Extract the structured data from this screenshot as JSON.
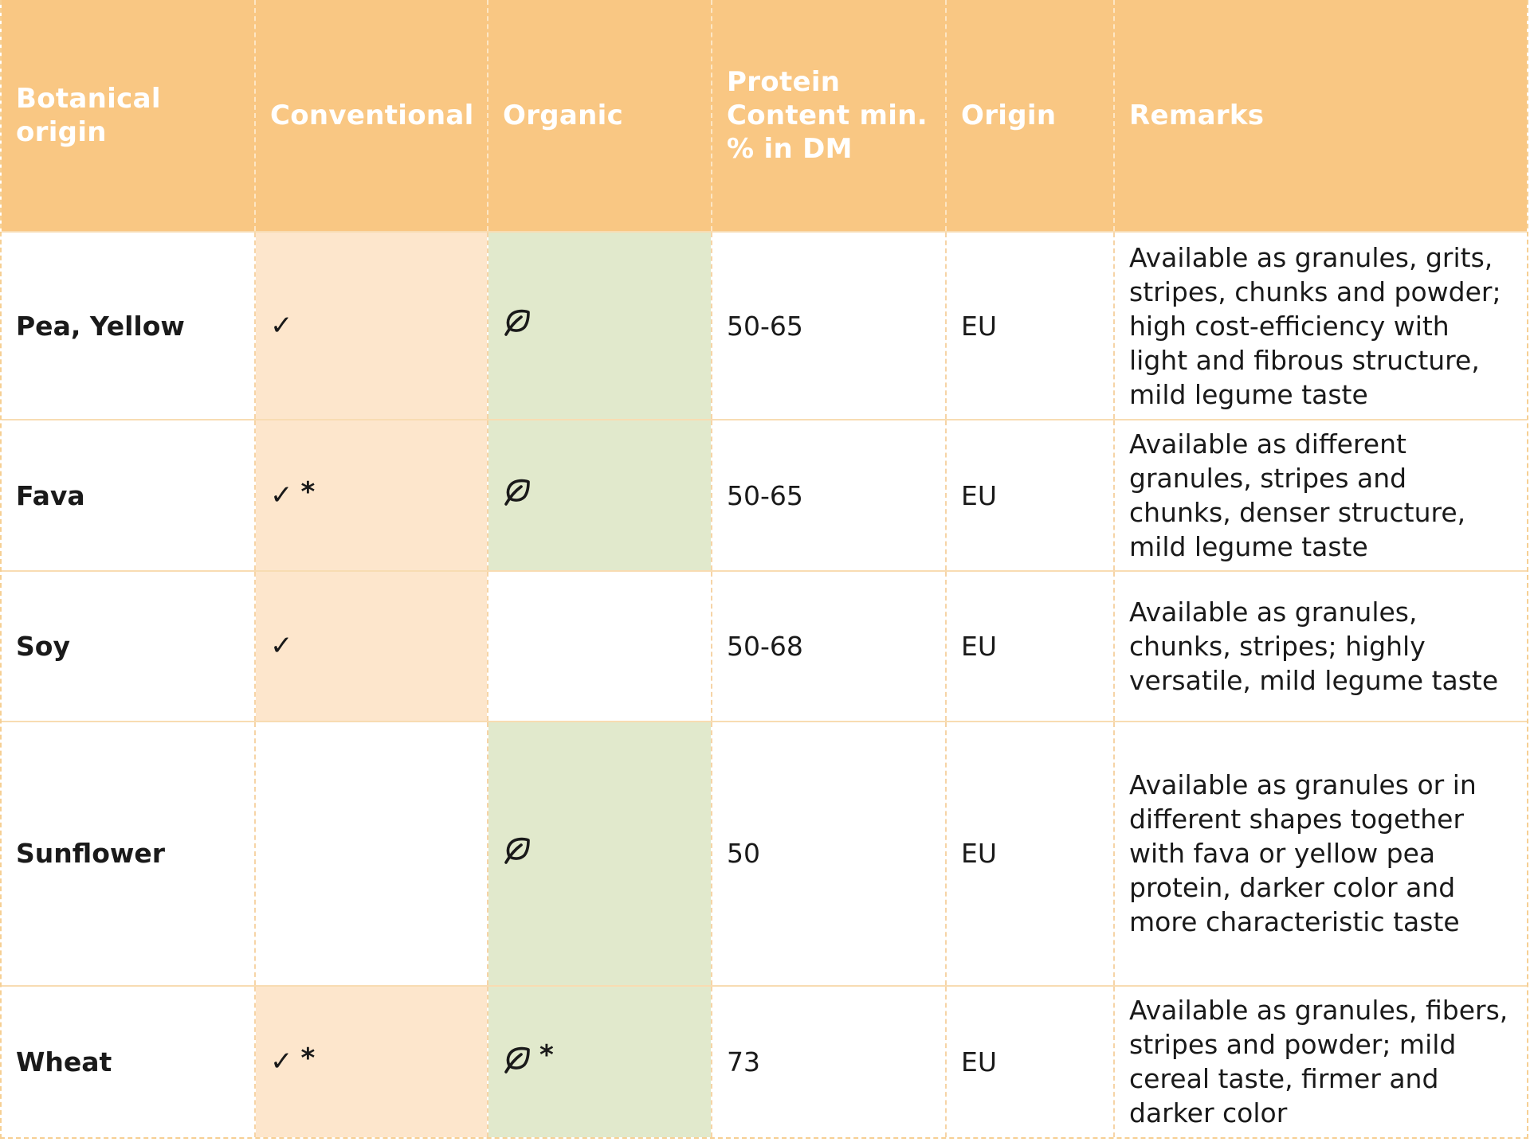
{
  "headers": {
    "botanical": "Botanical origin",
    "conventional": "Conventional",
    "organic": "Organic",
    "protein": "Protein Content min. % in DM",
    "origin": "Origin",
    "remarks": "Remarks"
  },
  "symbols": {
    "check": "✓",
    "asterisk": "*",
    "leaf_icon": "leaf-icon"
  },
  "colors": {
    "header_bg": "#f9c783",
    "conventional_bg": "#fde6cc",
    "organic_bg": "#e1e9cc"
  },
  "rows": [
    {
      "name": "Pea, Yellow",
      "conventional": true,
      "conventional_note": "",
      "organic": true,
      "organic_note": "",
      "protein": "50-65",
      "origin": "EU",
      "remarks": "Available as granules, grits, stripes, chunks and powder; high cost-efficiency with light and fibrous structure, mild legume taste"
    },
    {
      "name": "Fava",
      "conventional": true,
      "conventional_note": "*",
      "organic": true,
      "organic_note": "",
      "protein": "50-65",
      "origin": "EU",
      "remarks": "Available as different granules, stripes and chunks, denser structure, mild legume taste"
    },
    {
      "name": "Soy",
      "conventional": true,
      "conventional_note": "",
      "organic": false,
      "organic_note": "",
      "protein": "50-68",
      "origin": "EU",
      "remarks": "Available as granules, chunks, stripes; highly versatile, mild legume taste"
    },
    {
      "name": "Sunflower",
      "conventional": false,
      "conventional_note": "",
      "organic": true,
      "organic_note": "",
      "protein": "50",
      "origin": "EU",
      "remarks": "Available as granules or in different shapes together with fava or yellow pea protein, darker color and more characteristic taste"
    },
    {
      "name": "Wheat",
      "conventional": true,
      "conventional_note": "*",
      "organic": true,
      "organic_note": "*",
      "protein": "73",
      "origin": "EU",
      "remarks": "Available as granules, fibers, stripes and powder; mild cereal taste, firmer and darker color"
    }
  ]
}
